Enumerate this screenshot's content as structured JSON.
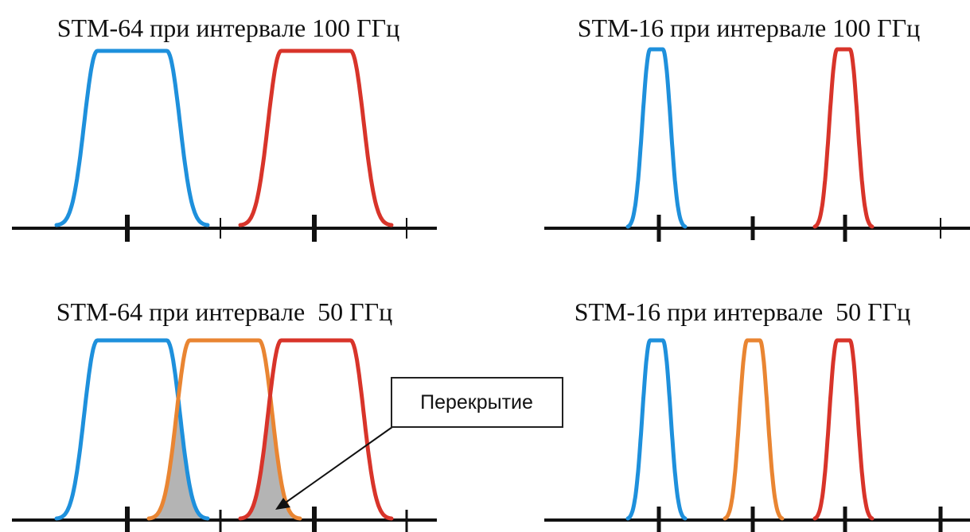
{
  "panels": [
    {
      "id": "stm64-100",
      "title": "STM-64 при интервале 100 ГГц",
      "channels": [
        "blue",
        "red"
      ]
    },
    {
      "id": "stm16-100",
      "title": "STM-16 при интервале 100 ГГц",
      "channels": [
        "blue",
        "red"
      ]
    },
    {
      "id": "stm64-50",
      "title": "STM-64 при интервале  50 ГГц",
      "channels": [
        "blue",
        "orange",
        "red"
      ],
      "overlap_shaded": true
    },
    {
      "id": "stm16-50",
      "title": "STM-16 при интервале  50 ГГц",
      "channels": [
        "blue",
        "orange",
        "red"
      ]
    }
  ],
  "callout": {
    "label": "Перекрытие"
  },
  "colors": {
    "blue": "#1e90dc",
    "red": "#d8342a",
    "orange": "#e98532",
    "overlap": "#b4b4b4",
    "axis": "#111111"
  }
}
